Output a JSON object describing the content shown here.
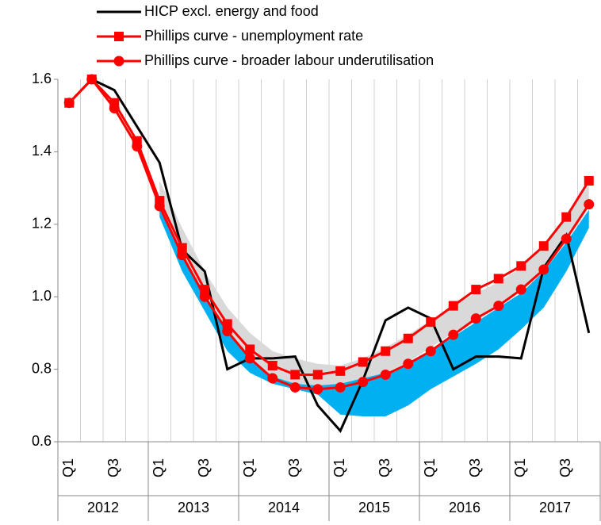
{
  "chart_data": {
    "type": "line",
    "categories": [
      "Q1",
      null,
      "Q3",
      null,
      "Q1",
      null,
      "Q3",
      null,
      "Q1",
      null,
      "Q3",
      null,
      "Q1",
      null,
      "Q3",
      null,
      "Q1",
      null,
      "Q3",
      null,
      "Q1",
      null,
      "Q3",
      null
    ],
    "years": [
      "2012",
      "2013",
      "2014",
      "2015",
      "2016",
      "2017"
    ],
    "ylim": [
      0.6,
      1.6
    ],
    "yticks": [
      0.6,
      0.8,
      {
        "value": 1,
        "label": "1.0"
      },
      1.2,
      1.4,
      1.6
    ],
    "bands": [
      {
        "color": "#d9d9d9",
        "lower": [
          null,
          null,
          null,
          null,
          1.23,
          1.1,
          0.98,
          0.88,
          0.81,
          0.77,
          0.75,
          0.745,
          0.75,
          0.77,
          0.79,
          0.82,
          0.86,
          0.9,
          0.94,
          0.98,
          1.02,
          1.08,
          1.16,
          1.25
        ],
        "upper": [
          null,
          null,
          null,
          null,
          1.32,
          1.19,
          1.07,
          0.97,
          0.9,
          0.85,
          0.83,
          0.815,
          0.81,
          0.83,
          0.86,
          0.895,
          0.935,
          0.975,
          1.01,
          1.04,
          1.08,
          1.14,
          1.22,
          1.31
        ]
      },
      {
        "color": "#00b0f0",
        "lower": [
          null,
          null,
          null,
          null,
          1.22,
          1.07,
          0.96,
          0.85,
          0.79,
          0.76,
          0.745,
          0.73,
          0.675,
          0.67,
          0.67,
          0.7,
          0.745,
          0.78,
          0.815,
          0.855,
          0.91,
          0.97,
          1.07,
          1.19
        ],
        "upper": [
          null,
          null,
          null,
          null,
          1.25,
          1.12,
          1.0,
          0.9,
          0.83,
          0.78,
          0.76,
          0.755,
          0.76,
          0.775,
          0.79,
          0.815,
          0.85,
          0.89,
          0.93,
          0.97,
          1.01,
          1.07,
          1.15,
          1.24
        ]
      }
    ],
    "series": [
      {
        "name": "HICP excl. energy and food",
        "color": "#000000",
        "marker": "none",
        "values": [
          1.535,
          1.6,
          1.57,
          1.47,
          1.37,
          1.13,
          1.07,
          0.8,
          0.83,
          0.83,
          0.835,
          0.7,
          0.63,
          0.77,
          0.935,
          0.97,
          0.94,
          0.8,
          0.835,
          0.835,
          0.83,
          1.08,
          1.17,
          0.9
        ]
      },
      {
        "name": "Phillips curve - unemployment rate",
        "color": "#ff0000",
        "marker": "square",
        "values": [
          1.535,
          1.6,
          1.535,
          1.43,
          1.265,
          1.135,
          1.02,
          0.925,
          0.855,
          0.81,
          0.785,
          0.785,
          0.795,
          0.82,
          0.85,
          0.885,
          0.93,
          0.975,
          1.02,
          1.05,
          1.085,
          1.14,
          1.22,
          1.32
        ]
      },
      {
        "name": "Phillips curve - broader labour underutilisation",
        "color": "#ff0000",
        "marker": "circle",
        "values": [
          1.535,
          1.6,
          1.52,
          1.415,
          1.25,
          1.115,
          1.0,
          0.905,
          0.83,
          0.775,
          0.75,
          0.745,
          0.75,
          0.765,
          0.785,
          0.815,
          0.85,
          0.895,
          0.94,
          0.975,
          1.02,
          1.075,
          1.16,
          1.255
        ]
      }
    ]
  }
}
